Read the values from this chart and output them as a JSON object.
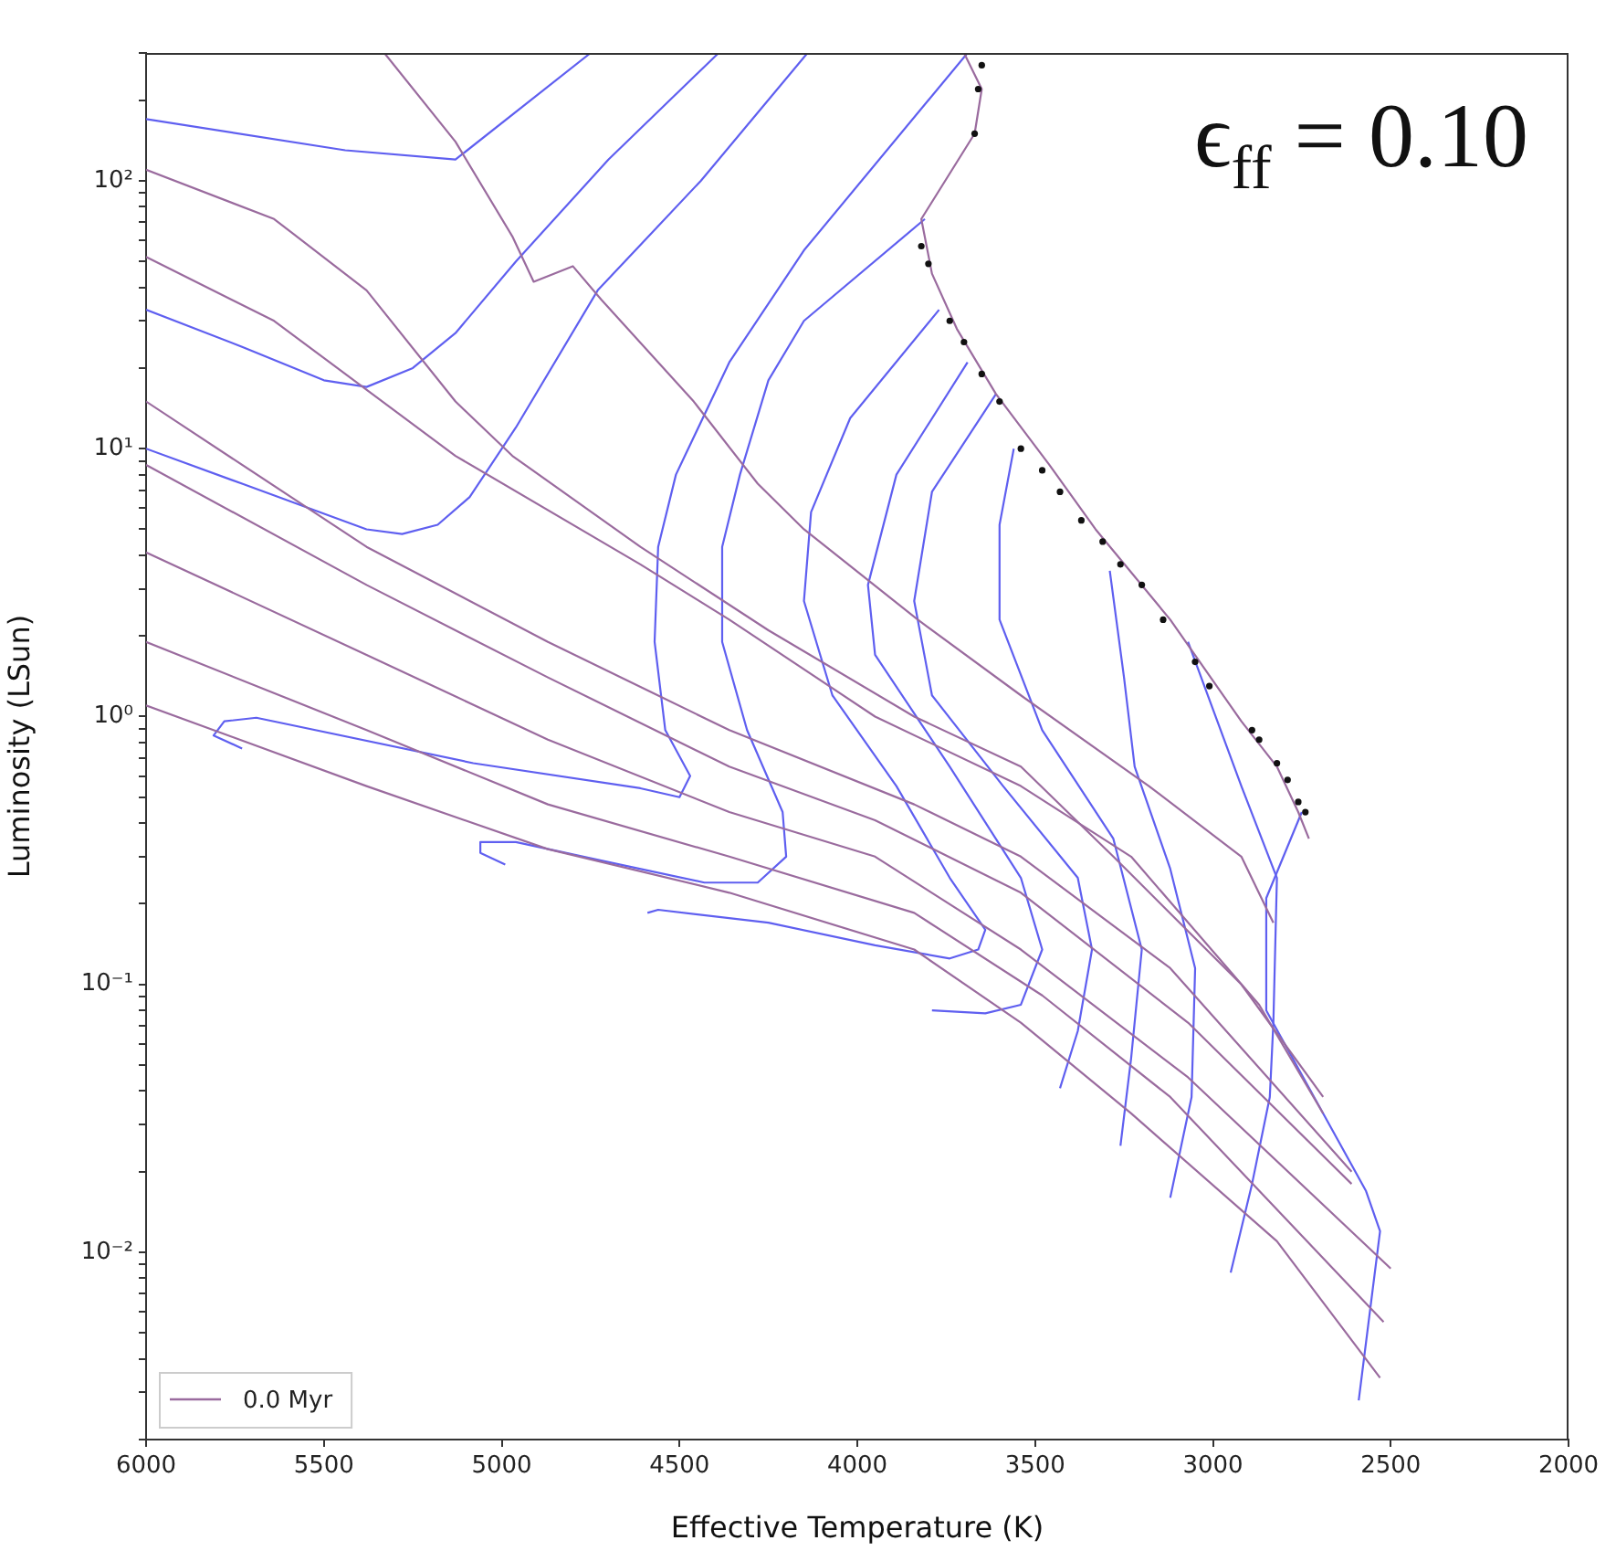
{
  "chart_data": {
    "type": "line",
    "xlabel": "Effective Temperature (K)",
    "ylabel": "Luminosity (LSun)",
    "annotations": [
      "ϵ$_{ff}$ = 0.10"
    ],
    "log": "y",
    "legend": "bottom left",
    "xlim": [
      6000,
      2000
    ],
    "xticks": [
      6000,
      5500,
      5000,
      4500,
      4000,
      3500,
      3000,
      2500,
      2000
    ],
    "ylim": [
      0.002,
      300
    ],
    "yticks": [
      {
        "value": 0.002,
        "label": null
      },
      {
        "value": 0.003,
        "label": null
      },
      {
        "value": 0.004,
        "label": null
      },
      {
        "value": 0.005,
        "label": null
      },
      {
        "value": 0.006,
        "label": null
      },
      {
        "value": 0.007,
        "label": null
      },
      {
        "value": 0.008,
        "label": null
      },
      {
        "value": 0.009,
        "label": null
      },
      {
        "value": 0.01,
        "label": "10⁻²"
      },
      {
        "value": 0.02,
        "label": null
      },
      {
        "value": 0.03,
        "label": null
      },
      {
        "value": 0.04,
        "label": null
      },
      {
        "value": 0.05,
        "label": null
      },
      {
        "value": 0.06,
        "label": null
      },
      {
        "value": 0.07,
        "label": null
      },
      {
        "value": 0.08,
        "label": null
      },
      {
        "value": 0.09,
        "label": null
      },
      {
        "value": 0.1,
        "label": "10⁻¹"
      },
      {
        "value": 0.2,
        "label": null
      },
      {
        "value": 0.3,
        "label": null
      },
      {
        "value": 0.4,
        "label": null
      },
      {
        "value": 0.5,
        "label": null
      },
      {
        "value": 0.6,
        "label": null
      },
      {
        "value": 0.7,
        "label": null
      },
      {
        "value": 0.8,
        "label": null
      },
      {
        "value": 0.9,
        "label": null
      },
      {
        "value": 1,
        "label": "10⁰"
      },
      {
        "value": 2,
        "label": null
      },
      {
        "value": 3,
        "label": null
      },
      {
        "value": 4,
        "label": null
      },
      {
        "value": 5,
        "label": null
      },
      {
        "value": 6,
        "label": null
      },
      {
        "value": 7,
        "label": null
      },
      {
        "value": 8,
        "label": null
      },
      {
        "value": 9,
        "label": null
      },
      {
        "value": 10,
        "label": "10¹"
      },
      {
        "value": 20,
        "label": null
      },
      {
        "value": 30,
        "label": null
      },
      {
        "value": 40,
        "label": null
      },
      {
        "value": 50,
        "label": null
      },
      {
        "value": 60,
        "label": null
      },
      {
        "value": 70,
        "label": null
      },
      {
        "value": 80,
        "label": null
      },
      {
        "value": 90,
        "label": null
      },
      {
        "value": 100,
        "label": "10²"
      },
      {
        "value": 200,
        "label": null
      },
      {
        "value": 300,
        "label": null
      }
    ],
    "series": [
      {
        "color": "#9a6b9e",
        "x": [
          6000,
          5380,
          4870,
          4360,
          3840,
          3540,
          3230,
          2820,
          2530
        ],
        "values": [
          1.1,
          0.55,
          0.32,
          0.22,
          0.135,
          0.072,
          0.033,
          0.011,
          0.0034
        ]
      },
      {
        "color": "#9a6b9e",
        "x": [
          6000,
          5380,
          4870,
          4360,
          3840,
          3480,
          3120,
          2520
        ],
        "values": [
          1.9,
          0.89,
          0.47,
          0.3,
          0.185,
          0.091,
          0.038,
          0.0055
        ]
      },
      {
        "color": "#9a6b9e",
        "x": [
          6000,
          5380,
          4870,
          4360,
          3950,
          3540,
          3070,
          2500
        ],
        "values": [
          4.1,
          1.7,
          0.82,
          0.44,
          0.3,
          0.135,
          0.045,
          0.0087
        ]
      },
      {
        "color": "#9a6b9e",
        "x": [
          6000,
          5380,
          4870,
          4360,
          3950,
          3540,
          3070,
          2610
        ],
        "values": [
          8.7,
          3.1,
          1.4,
          0.65,
          0.41,
          0.22,
          0.072,
          0.018
        ]
      },
      {
        "color": "#9a6b9e",
        "x": [
          6000,
          5380,
          4870,
          4360,
          3840,
          3540,
          3120,
          2610
        ],
        "values": [
          15,
          4.3,
          1.9,
          0.89,
          0.47,
          0.3,
          0.115,
          0.02
        ]
      },
      {
        "color": "#9a6b9e",
        "x": [
          6000,
          5640,
          5130,
          4610,
          4360,
          3950,
          3540,
          3230,
          2870,
          2690
        ],
        "values": [
          52,
          30,
          9.4,
          3.7,
          2.3,
          1.0,
          0.55,
          0.3,
          0.084,
          0.033
        ]
      },
      {
        "color": "#9a6b9e",
        "x": [
          6000,
          5640,
          5380,
          5130,
          4970,
          4610,
          4250,
          3840,
          3540,
          3280,
          2920,
          2690
        ],
        "values": [
          110,
          72,
          39,
          15,
          9.4,
          4.3,
          2.1,
          1.0,
          0.65,
          0.3,
          0.1,
          0.038
        ]
      },
      {
        "color": "#9a6b9e",
        "x": [
          5330,
          5130,
          4970,
          4910,
          4800,
          4720,
          4460,
          4280,
          4150,
          3830,
          3540,
          3180,
          2920,
          2830
        ],
        "values": [
          300,
          140,
          62,
          42,
          48,
          36,
          15,
          7.4,
          5.0,
          2.3,
          1.2,
          0.55,
          0.3,
          0.17
        ]
      },
      {
        "name": "0.0 Myr",
        "color": "#9a6b9e",
        "x": [
          3700,
          3650,
          3670,
          3820,
          3790,
          3720,
          3610,
          3460,
          3330,
          3120,
          2920,
          2820,
          2760,
          2730
        ],
        "values": [
          300,
          220,
          150,
          72,
          45,
          28,
          16,
          8.7,
          5.0,
          2.3,
          0.96,
          0.65,
          0.44,
          0.35
        ]
      },
      {
        "color": "#5f5ff0",
        "x": [
          4750,
          5130,
          5440,
          6000
        ],
        "values": [
          300,
          120,
          130,
          170
        ]
      },
      {
        "color": "#5f5ff0",
        "x": [
          4390,
          4700,
          4960,
          5130,
          5250,
          5380,
          5500,
          5730,
          6000
        ],
        "values": [
          300,
          120,
          50,
          27,
          20,
          17,
          18,
          24,
          33
        ]
      },
      {
        "color": "#5f5ff0",
        "x": [
          4140,
          4440,
          4730,
          4960,
          5090,
          5180,
          5280,
          5380,
          5730,
          6000
        ],
        "values": [
          300,
          100,
          39,
          12,
          6.6,
          5.2,
          4.8,
          5.0,
          7.4,
          10
        ]
      },
      {
        "color": "#5f5ff0",
        "x": [
          3690,
          4150,
          4360,
          4510,
          4560,
          4570,
          4540,
          4470,
          4500,
          4610,
          5080,
          5690,
          5780,
          5810,
          5730
        ],
        "values": [
          300,
          55,
          21,
          8.0,
          4.3,
          1.9,
          0.89,
          0.6,
          0.5,
          0.54,
          0.67,
          0.99,
          0.96,
          0.85,
          0.76
        ]
      },
      {
        "color": "#5f5ff0",
        "x": [
          3810,
          4150,
          4250,
          4330,
          4380,
          4380,
          4310,
          4210,
          4200,
          4280,
          4430,
          4720,
          4960,
          5060,
          5060,
          4990
        ],
        "values": [
          72,
          30,
          18,
          8.0,
          4.3,
          1.9,
          0.89,
          0.44,
          0.3,
          0.24,
          0.24,
          0.29,
          0.34,
          0.34,
          0.31,
          0.28
        ]
      },
      {
        "color": "#5f5ff0",
        "x": [
          3770,
          4020,
          4130,
          4150,
          4070,
          3890,
          3740,
          3640,
          3660,
          3740,
          3950,
          4250,
          4560,
          4590
        ],
        "values": [
          33,
          13,
          5.8,
          2.7,
          1.2,
          0.55,
          0.25,
          0.16,
          0.135,
          0.125,
          0.14,
          0.17,
          0.19,
          0.185
        ]
      },
      {
        "color": "#5f5ff0",
        "x": [
          3690,
          3890,
          3970,
          3950,
          3740,
          3540,
          3480,
          3540,
          3640,
          3790
        ],
        "values": [
          21,
          8.0,
          3.1,
          1.7,
          0.65,
          0.25,
          0.135,
          0.084,
          0.078,
          0.08
        ]
      },
      {
        "color": "#5f5ff0",
        "x": [
          3610,
          3790,
          3840,
          3790,
          3590,
          3380,
          3340,
          3380,
          3430
        ],
        "values": [
          16,
          6.9,
          2.7,
          1.2,
          0.55,
          0.25,
          0.135,
          0.067,
          0.041
        ]
      },
      {
        "color": "#5f5ff0",
        "x": [
          3560,
          3600,
          3600,
          3480,
          3280,
          3200,
          3230,
          3260
        ],
        "values": [
          10,
          5.2,
          2.3,
          0.89,
          0.35,
          0.135,
          0.053,
          0.025
        ]
      },
      {
        "color": "#5f5ff0",
        "x": [
          3290,
          3250,
          3220,
          3120,
          3050,
          3060,
          3120
        ],
        "values": [
          3.5,
          1.4,
          0.65,
          0.27,
          0.115,
          0.038,
          0.016
        ]
      },
      {
        "color": "#5f5ff0",
        "x": [
          3070,
          2920,
          2820,
          2830,
          2840,
          2890,
          2950
        ],
        "values": [
          1.9,
          0.55,
          0.25,
          0.072,
          0.038,
          0.018,
          0.0084
        ]
      },
      {
        "color": "#5f5ff0",
        "x": [
          2750,
          2850,
          2850,
          2690,
          2570,
          2530,
          2560,
          2590
        ],
        "values": [
          0.44,
          0.21,
          0.08,
          0.033,
          0.017,
          0.012,
          0.0058,
          0.0028
        ]
      },
      {
        "type": "scatter",
        "marker": "circle",
        "color": "#111111",
        "x": [
          3650,
          3660,
          3670,
          3820,
          3800,
          3740,
          3700,
          3650,
          3600,
          3540,
          3480,
          3430,
          3370,
          3310,
          3260,
          3200,
          3140,
          3050,
          3010,
          2890,
          2870,
          2820,
          2790,
          2760,
          2740
        ],
        "values": [
          270,
          220,
          150,
          57,
          49,
          30,
          25,
          19,
          15,
          10,
          8.3,
          6.9,
          5.4,
          4.5,
          3.7,
          3.1,
          2.3,
          1.6,
          1.3,
          0.89,
          0.82,
          0.67,
          0.58,
          0.48,
          0.44
        ]
      }
    ]
  }
}
